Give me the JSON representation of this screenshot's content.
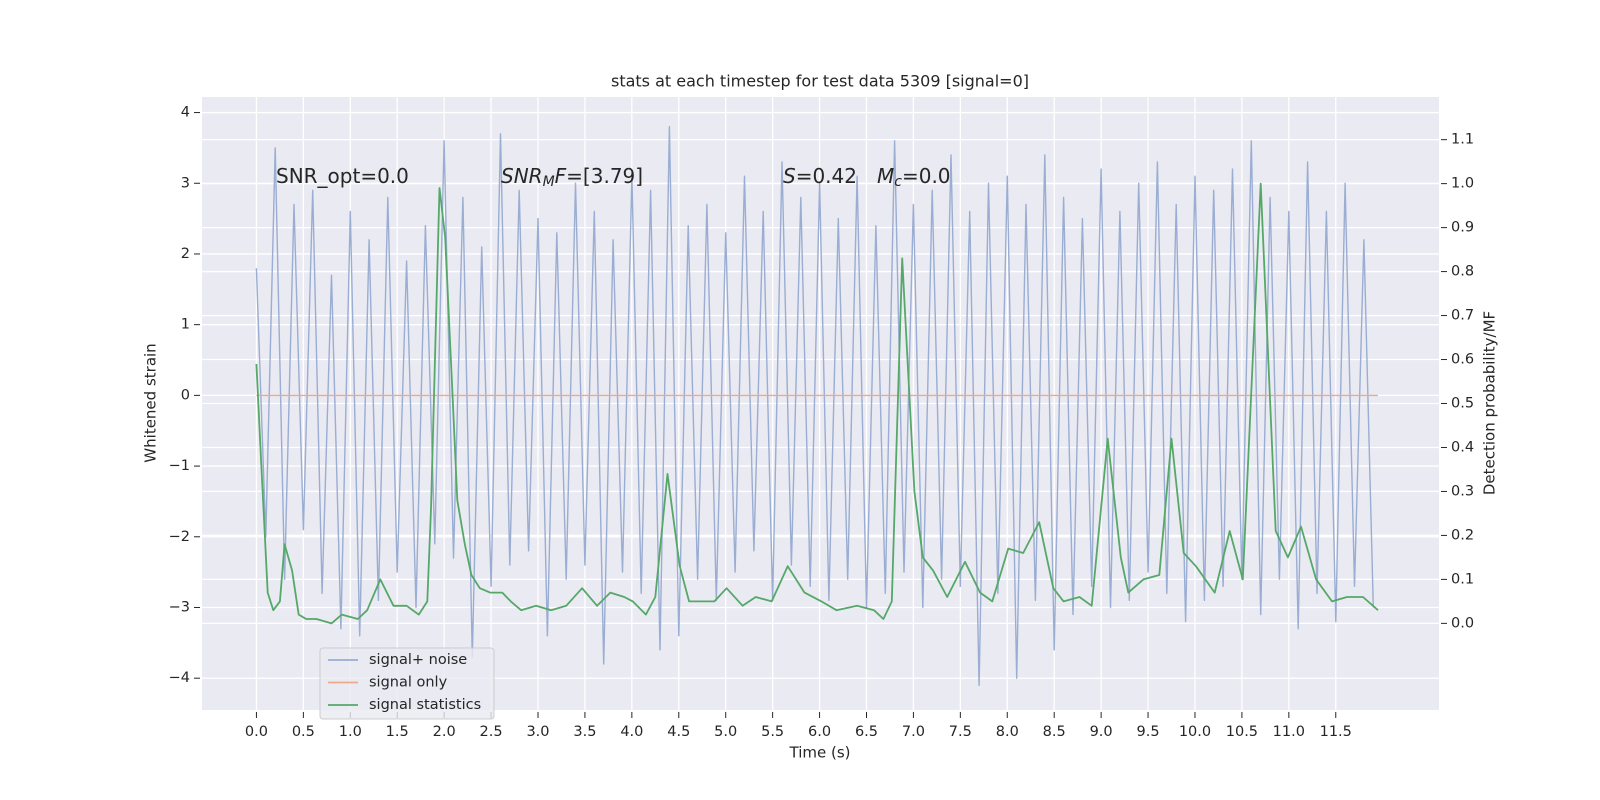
{
  "chart_data": {
    "type": "line",
    "title": "stats at each timestep for test data 5309 [signal=0]",
    "xlabel": "Time (s)",
    "ylabel": "Whitened strain",
    "y2label": "Detection probability/MF",
    "xlim": [
      -0.58,
      12.6
    ],
    "ylim": [
      -4.45,
      4.22
    ],
    "y2lim": [
      -0.197,
      1.197
    ],
    "xticks": [
      {
        "value": 0,
        "label": "0.0"
      },
      0.5,
      {
        "value": 1,
        "label": "1.0"
      },
      1.5,
      {
        "value": 2,
        "label": "2.0"
      },
      2.5,
      {
        "value": 3,
        "label": "3.0"
      },
      3.5,
      {
        "value": 4,
        "label": "4.0"
      },
      4.5,
      {
        "value": 5,
        "label": "5.0"
      },
      5.5,
      {
        "value": 6,
        "label": "6.0"
      },
      6.5,
      {
        "value": 7,
        "label": "7.0"
      },
      7.5,
      {
        "value": 8,
        "label": "8.0"
      },
      8.5,
      {
        "value": 9,
        "label": "9.0"
      },
      9.5,
      {
        "value": 10,
        "label": "10.0"
      },
      10.5,
      {
        "value": 11,
        "label": "11.0"
      },
      11.5
    ],
    "yticks": [
      {
        "value": -4,
        "label": "−4"
      },
      {
        "value": -3,
        "label": "−3"
      },
      {
        "value": -2,
        "label": "−2"
      },
      {
        "value": -1,
        "label": "−1"
      },
      0,
      1,
      2,
      3,
      4
    ],
    "y2ticks": [
      {
        "value": 0,
        "label": "0.0"
      },
      0.1,
      0.2,
      0.3,
      0.4,
      0.5,
      0.6,
      0.7,
      0.8,
      0.9,
      {
        "value": 1,
        "label": "1.0"
      },
      1.1
    ],
    "grid": true,
    "legend": "lower left",
    "annotations": [
      {
        "text": "SNR_opt=0.0",
        "math": false
      },
      {
        "text": "SNR",
        "sub": "M",
        "after": "F",
        "rest": "=[3.79]",
        "math": true
      },
      {
        "text": "S",
        "rest": "=0.42",
        "math": true
      },
      {
        "text": "M",
        "sub": "c",
        "rest": "=0.0",
        "math": true
      }
    ],
    "series": [
      {
        "name": "signal+ noise",
        "color": "#9aadd2",
        "axis": "y",
        "x": [
          0,
          0.1,
          0.2,
          0.3,
          0.4,
          0.5,
          0.6,
          0.7,
          0.8,
          0.9,
          1,
          1.1,
          1.2,
          1.3,
          1.4,
          1.5,
          1.6,
          1.7,
          1.8,
          1.9,
          2,
          2.1,
          2.2,
          2.3,
          2.4,
          2.5,
          2.6,
          2.7,
          2.8,
          2.9,
          3,
          3.1,
          3.2,
          3.3,
          3.4,
          3.5,
          3.6,
          3.7,
          3.8,
          3.9,
          4,
          4.1,
          4.2,
          4.3,
          4.4,
          4.5,
          4.6,
          4.7,
          4.8,
          4.9,
          5,
          5.1,
          5.2,
          5.3,
          5.4,
          5.5,
          5.6,
          5.7,
          5.8,
          5.9,
          6,
          6.1,
          6.2,
          6.3,
          6.4,
          6.5,
          6.6,
          6.7,
          6.8,
          6.9,
          7,
          7.1,
          7.2,
          7.3,
          7.4,
          7.5,
          7.6,
          7.7,
          7.8,
          7.9,
          8,
          8.1,
          8.2,
          8.3,
          8.4,
          8.5,
          8.6,
          8.7,
          8.8,
          8.9,
          9,
          9.1,
          9.2,
          9.3,
          9.4,
          9.5,
          9.6,
          9.7,
          9.8,
          9.9,
          10,
          10.1,
          10.2,
          10.3,
          10.4,
          10.5,
          10.6,
          10.7,
          10.8,
          10.9,
          11,
          11.1,
          11.2,
          11.3,
          11.4,
          11.5,
          11.6,
          11.7,
          11.8,
          11.9
        ],
        "values": [
          1.8,
          -2.0,
          3.5,
          -2.6,
          2.7,
          -1.9,
          2.9,
          -2.8,
          1.7,
          -3.3,
          2.6,
          -3.4,
          2.2,
          -2.9,
          2.8,
          -2.5,
          1.9,
          -3.0,
          2.4,
          -2.1,
          3.6,
          -2.3,
          2.8,
          -3.7,
          2.1,
          -2.7,
          3.7,
          -2.4,
          2.9,
          -2.2,
          2.5,
          -3.4,
          2.3,
          -2.6,
          3.0,
          -2.4,
          2.6,
          -3.8,
          2.2,
          -2.5,
          3.1,
          -2.8,
          2.9,
          -3.6,
          3.8,
          -3.4,
          2.4,
          -2.6,
          2.7,
          -2.9,
          2.3,
          -2.5,
          3.1,
          -2.2,
          2.6,
          -2.9,
          3.3,
          -2.4,
          2.8,
          -2.7,
          3.0,
          -2.9,
          2.5,
          -2.6,
          3.1,
          -3.0,
          2.4,
          -2.8,
          3.6,
          -2.5,
          2.7,
          -3.0,
          2.9,
          -2.6,
          3.4,
          -2.7,
          2.6,
          -4.1,
          3.0,
          -2.8,
          3.1,
          -4.0,
          2.7,
          -2.9,
          3.4,
          -3.6,
          2.8,
          -3.1,
          2.5,
          -2.7,
          3.2,
          -3.0,
          2.6,
          -2.9,
          3.0,
          -2.5,
          3.3,
          -2.8,
          2.7,
          -3.2,
          3.1,
          -2.9,
          2.9,
          -2.7,
          3.2,
          -2.6,
          3.6,
          -3.1,
          2.8,
          -2.6,
          2.6,
          -3.3,
          3.3,
          -2.8,
          2.6,
          -3.2,
          3.0,
          -2.7,
          2.2,
          -3.0
        ]
      },
      {
        "name": "signal only",
        "color": "#eda98a",
        "axis": "y",
        "x": [
          0,
          11.95
        ],
        "values": [
          0,
          0
        ]
      },
      {
        "name": "signal statistics",
        "color": "#55a868",
        "axis": "y2",
        "x": [
          0,
          0.05,
          0.12,
          0.18,
          0.25,
          0.3,
          0.38,
          0.45,
          0.53,
          0.64,
          0.8,
          0.91,
          1.08,
          1.18,
          1.32,
          1.46,
          1.6,
          1.73,
          1.82,
          1.86,
          1.95,
          2.01,
          2.08,
          2.14,
          2.22,
          2.29,
          2.38,
          2.49,
          2.62,
          2.71,
          2.82,
          2.98,
          3.14,
          3.3,
          3.47,
          3.63,
          3.77,
          3.92,
          4.01,
          4.15,
          4.25,
          4.38,
          4.51,
          4.61,
          4.77,
          4.88,
          5.01,
          5.18,
          5.32,
          5.49,
          5.66,
          5.84,
          6.02,
          6.18,
          6.4,
          6.58,
          6.68,
          6.77,
          6.88,
          7.01,
          7.1,
          7.21,
          7.36,
          7.55,
          7.71,
          7.84,
          8.01,
          8.17,
          8.34,
          8.49,
          8.6,
          8.77,
          8.9,
          9.07,
          9.21,
          9.29,
          9.45,
          9.62,
          9.75,
          9.88,
          10.01,
          10.21,
          10.37,
          10.51,
          10.7,
          10.86,
          10.99,
          11.13,
          11.29,
          11.46,
          11.62,
          11.79,
          11.95
        ],
        "values": [
          0.59,
          0.37,
          0.07,
          0.03,
          0.05,
          0.18,
          0.12,
          0.02,
          0.01,
          0.01,
          0.0,
          0.02,
          0.01,
          0.03,
          0.1,
          0.04,
          0.04,
          0.02,
          0.05,
          0.26,
          0.99,
          0.88,
          0.56,
          0.28,
          0.18,
          0.11,
          0.08,
          0.07,
          0.07,
          0.05,
          0.03,
          0.04,
          0.03,
          0.04,
          0.08,
          0.04,
          0.07,
          0.06,
          0.05,
          0.02,
          0.06,
          0.34,
          0.13,
          0.05,
          0.05,
          0.05,
          0.08,
          0.04,
          0.06,
          0.05,
          0.13,
          0.07,
          0.05,
          0.03,
          0.04,
          0.03,
          0.01,
          0.05,
          0.83,
          0.3,
          0.15,
          0.12,
          0.06,
          0.14,
          0.07,
          0.05,
          0.17,
          0.16,
          0.23,
          0.08,
          0.05,
          0.06,
          0.04,
          0.42,
          0.15,
          0.07,
          0.1,
          0.11,
          0.42,
          0.16,
          0.13,
          0.07,
          0.21,
          0.1,
          1.0,
          0.21,
          0.15,
          0.22,
          0.1,
          0.05,
          0.06,
          0.06,
          0.03
        ]
      }
    ]
  }
}
